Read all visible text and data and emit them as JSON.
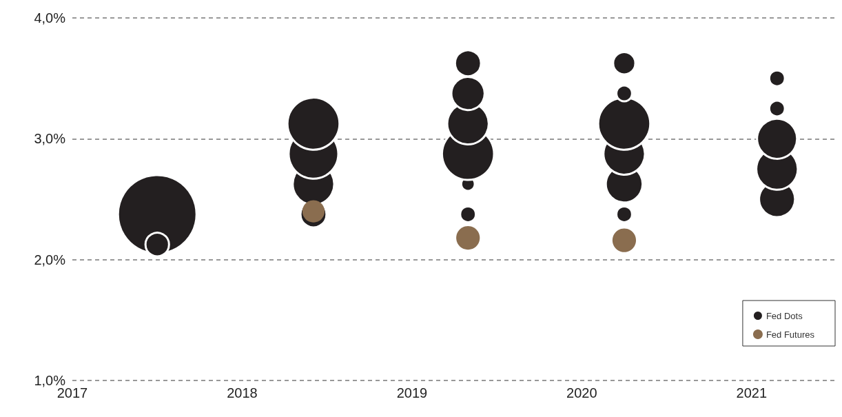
{
  "chart_data": {
    "type": "bubble",
    "relative": false,
    "xlim": [
      2017,
      2021.5
    ],
    "xticks": [
      2017,
      2018,
      2019,
      2020,
      2021
    ],
    "ylim": [
      1,
      4
    ],
    "yticks": [
      {
        "value": 1,
        "label": "1,0%"
      },
      {
        "value": 2,
        "label": "2,0%"
      },
      {
        "value": 3,
        "label": "3,0%"
      },
      {
        "value": 4,
        "label": "4,0%"
      }
    ],
    "grid": "y",
    "legend": "bottom right",
    "marker": "circle",
    "series": [
      {
        "name": "Fed Dots",
        "color": "#231f20",
        "x": [
          2017.5,
          2017.5,
          2018.42,
          2018.42,
          2018.42,
          2018.42,
          2019.33,
          2019.33,
          2019.33,
          2019.33,
          2019.33,
          2019.33,
          2020.25,
          2020.25,
          2020.25,
          2020.25,
          2020.25,
          2020.25,
          2021.15,
          2021.15,
          2021.15,
          2021.15,
          2021.15
        ],
        "values": [
          2.375,
          2.125,
          2.375,
          2.625,
          2.875,
          3.125,
          2.375,
          2.625,
          2.875,
          3.125,
          3.375,
          3.625,
          2.375,
          2.625,
          2.875,
          3.125,
          3.375,
          3.625,
          2.5,
          2.75,
          3.0,
          3.25,
          3.5
        ],
        "sizes": [
          1,
          0.09,
          0.11,
          0.28,
          0.4,
          0.44,
          0.04,
          0.03,
          0.44,
          0.28,
          0.18,
          0.11,
          0.04,
          0.22,
          0.28,
          0.44,
          0.04,
          0.08,
          0.21,
          0.28,
          0.26,
          0.04,
          0.04
        ]
      },
      {
        "name": "Fed Futures",
        "color": "#8a6d4f",
        "x": [
          2018.42,
          2019.33,
          2020.25
        ],
        "values": [
          2.4,
          2.18,
          2.16
        ],
        "sizes": [
          0.08,
          0.09,
          0.09
        ]
      }
    ]
  }
}
